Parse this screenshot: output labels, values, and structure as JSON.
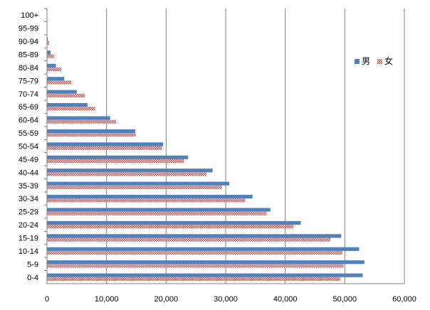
{
  "chart_data": {
    "type": "bar",
    "orientation": "horizontal",
    "categories": [
      "0-4",
      "5-9",
      "10-14",
      "15-19",
      "20-24",
      "25-29",
      "30-34",
      "35-39",
      "40-44",
      "45-49",
      "50-54",
      "55-59",
      "60-64",
      "65-69",
      "70-74",
      "75-79",
      "80-84",
      "85-89",
      "90-94",
      "95-99",
      "100+"
    ],
    "series": [
      {
        "name": "男",
        "color": "#4f81bd",
        "values": [
          53000,
          53300,
          52400,
          49400,
          42600,
          37500,
          34500,
          30600,
          27800,
          23700,
          19500,
          14800,
          10600,
          6800,
          5000,
          2900,
          1500,
          600,
          150,
          20,
          0
        ]
      },
      {
        "name": "女",
        "color": "#c0504d",
        "pattern": "checker",
        "values": [
          49200,
          49800,
          49600,
          47600,
          41400,
          36900,
          33300,
          29400,
          26800,
          23000,
          19300,
          14900,
          11600,
          8100,
          6400,
          4100,
          2400,
          1200,
          350,
          60,
          10
        ]
      }
    ],
    "x_ticks": [
      "0",
      "10,000",
      "20,000",
      "30,000",
      "40,000",
      "50,000",
      "60,000"
    ],
    "xlim": [
      0,
      60000
    ],
    "grid": "vertical",
    "legend": "right",
    "title": "",
    "xlabel": "",
    "ylabel": ""
  }
}
